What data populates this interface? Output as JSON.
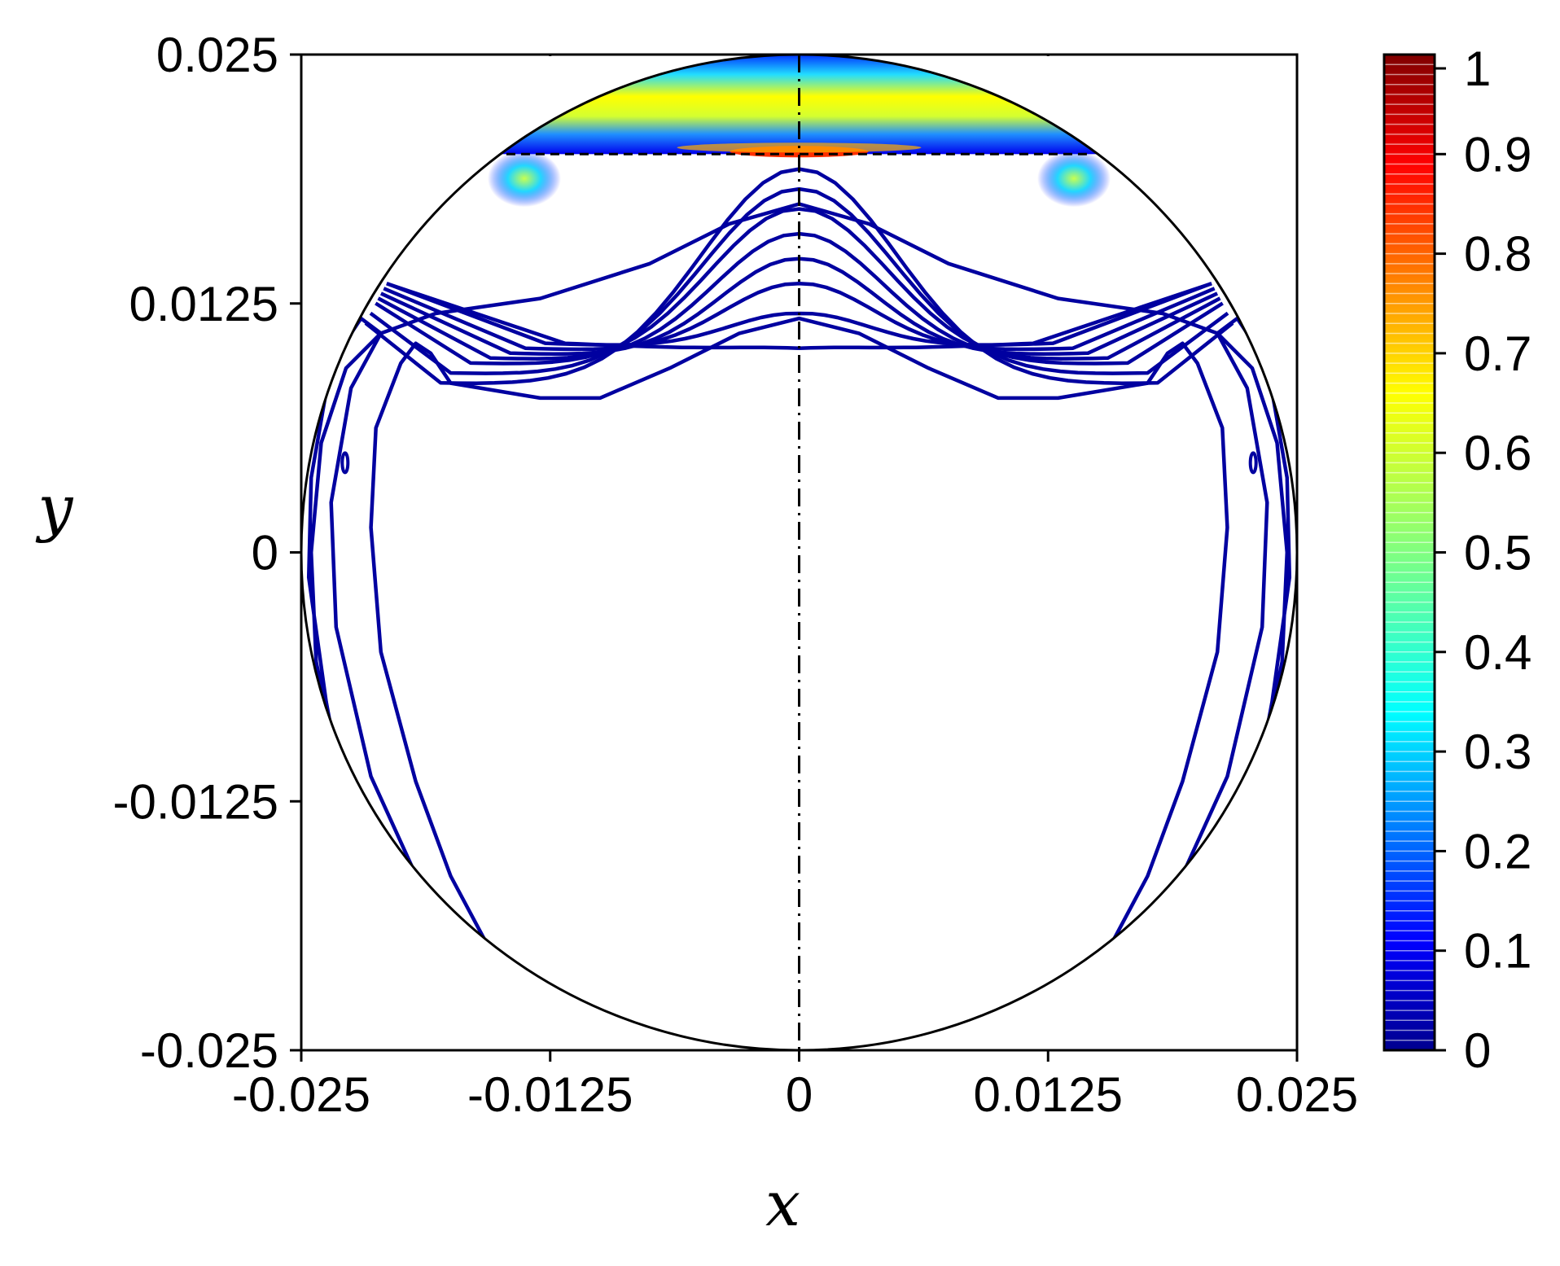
{
  "chart_data": {
    "type": "contour",
    "xlabel": "x",
    "ylabel": "y",
    "xlim": [
      -0.025,
      0.025
    ],
    "ylim": [
      -0.025,
      0.025
    ],
    "x_ticks": [
      "-0.025",
      "-0.0125",
      "0",
      "0.0125",
      "0.025"
    ],
    "y_ticks": [
      "0.025",
      "0.0125",
      "0",
      "-0.0125",
      "-0.025"
    ],
    "colorbar": {
      "range": [
        0,
        1
      ],
      "ticks": [
        "1",
        "0.9",
        "0.8",
        "0.7",
        "0.6",
        "0.5",
        "0.4",
        "0.3",
        "0.2",
        "0.1",
        "0"
      ],
      "colormap": "jet"
    },
    "domain_circle": {
      "center": [
        0,
        0
      ],
      "radius": 0.025
    },
    "dashed_line": {
      "y": 0.02,
      "x": [
        -0.0147,
        0.0147
      ]
    },
    "symmetry_axis": {
      "x": 0
    },
    "contour_colors": {
      "low": "#00008b",
      "peak": "#ff0000"
    }
  }
}
